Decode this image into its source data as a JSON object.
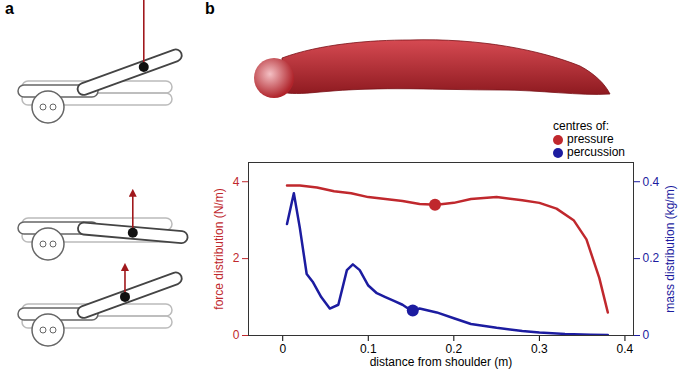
{
  "panel_labels": [
    "a",
    "b"
  ],
  "chart_data": {
    "type": "line",
    "x_label": "distance from shoulder (m)",
    "y_label": "force distribution (N/m)",
    "y2_label": "mass distribution (kg/m)",
    "xlim": [
      -0.04,
      0.41
    ],
    "xticks": [
      0,
      0.1,
      0.2,
      0.3,
      0.4
    ],
    "ylim": [
      0,
      4.5
    ],
    "yticks": [
      0,
      2,
      4
    ],
    "y2lim": [
      0,
      0.45
    ],
    "y2ticks": [
      0,
      0.2,
      0.4
    ],
    "legend": "top-right",
    "legend_title": "centres of:",
    "series": [
      {
        "type": "line",
        "color": "#c0282d",
        "x": [
          0.005,
          0.02,
          0.04,
          0.06,
          0.08,
          0.1,
          0.12,
          0.14,
          0.16,
          0.18,
          0.2,
          0.22,
          0.25,
          0.28,
          0.3,
          0.32,
          0.34,
          0.355,
          0.37,
          0.38
        ],
        "values": [
          3.9,
          3.9,
          3.85,
          3.75,
          3.7,
          3.6,
          3.55,
          3.5,
          3.42,
          3.4,
          3.45,
          3.55,
          3.6,
          3.52,
          3.45,
          3.3,
          3.0,
          2.5,
          1.5,
          0.6
        ]
      },
      {
        "type": "line",
        "color": "#1c1ca0",
        "axis": "y2",
        "x": [
          0.005,
          0.013,
          0.02,
          0.028,
          0.035,
          0.045,
          0.055,
          0.065,
          0.075,
          0.082,
          0.09,
          0.1,
          0.11,
          0.12,
          0.13,
          0.14,
          0.15,
          0.16,
          0.17,
          0.18,
          0.2,
          0.22,
          0.25,
          0.28,
          0.3,
          0.33,
          0.36,
          0.38
        ],
        "values": [
          0.29,
          0.37,
          0.28,
          0.16,
          0.14,
          0.1,
          0.07,
          0.08,
          0.17,
          0.185,
          0.17,
          0.13,
          0.11,
          0.1,
          0.09,
          0.08,
          0.065,
          0.07,
          0.065,
          0.06,
          0.045,
          0.03,
          0.02,
          0.012,
          0.008,
          0.004,
          0.002,
          0.001
        ]
      },
      {
        "name": "pressure",
        "type": "scatter",
        "marker": "circle",
        "color": "#c0282d",
        "x": [
          0.178
        ],
        "values": [
          3.4
        ]
      },
      {
        "name": "percussion",
        "type": "scatter",
        "marker": "circle",
        "color": "#1c1ca0",
        "axis": "y2",
        "x": [
          0.152
        ],
        "values": [
          0.065
        ]
      }
    ]
  }
}
